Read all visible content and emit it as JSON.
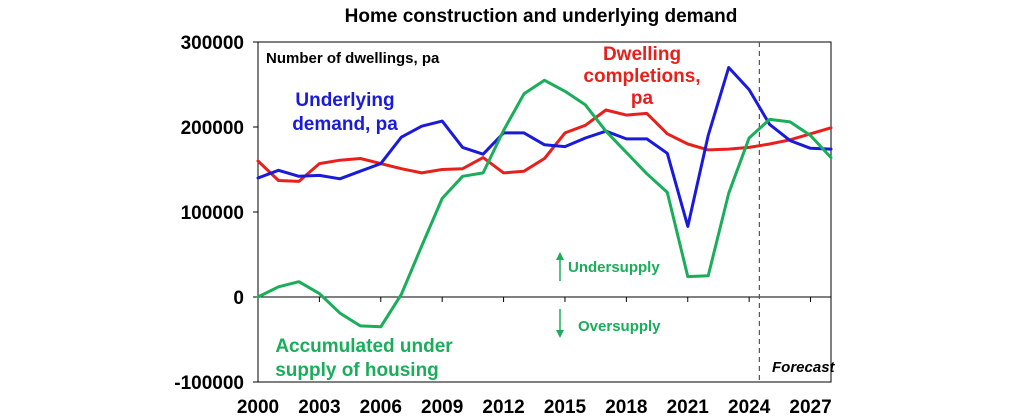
{
  "chart_data": {
    "type": "line",
    "title": "Home construction and underlying demand",
    "ylabel": "Number of dwellings, pa",
    "ylim": [
      -100000,
      300000
    ],
    "yticks": [
      300000,
      200000,
      100000,
      0,
      -100000
    ],
    "ytick_labels": [
      "300000",
      "200000",
      "100000",
      "0",
      "-100000"
    ],
    "xlim": [
      2000,
      2028
    ],
    "xticks": [
      2000,
      2003,
      2006,
      2009,
      2012,
      2015,
      2018,
      2021,
      2024,
      2027
    ],
    "xtick_labels": [
      "2000",
      "2003",
      "2006",
      "2009",
      "2012",
      "2015",
      "2018",
      "2021",
      "2024",
      "2027"
    ],
    "x": [
      2000,
      2001,
      2002,
      2003,
      2004,
      2005,
      2006,
      2007,
      2008,
      2009,
      2010,
      2011,
      2012,
      2013,
      2014,
      2015,
      2016,
      2017,
      2018,
      2019,
      2020,
      2021,
      2022,
      2023,
      2024,
      2025,
      2026,
      2027,
      2028
    ],
    "series": [
      {
        "name": "Underlying demand, pa",
        "label_lines": [
          "Underlying",
          "demand, pa"
        ],
        "color": "#1a1adb",
        "values": [
          140000,
          149000,
          142000,
          143000,
          139000,
          148000,
          157000,
          188000,
          201000,
          207000,
          176000,
          168000,
          193000,
          193000,
          179000,
          177000,
          187000,
          195000,
          186000,
          186000,
          169000,
          83000,
          190000,
          270000,
          244000,
          203000,
          184000,
          175000,
          174000
        ]
      },
      {
        "name": "Dwelling completions, pa",
        "label_lines": [
          "Dwelling",
          "completions,",
          "pa"
        ],
        "color": "#e8201c",
        "values": [
          160000,
          137000,
          136000,
          157000,
          161000,
          163000,
          157000,
          151000,
          146000,
          150000,
          151000,
          164000,
          146000,
          148000,
          163000,
          193000,
          202000,
          220000,
          214000,
          216000,
          192000,
          180000,
          173000,
          174000,
          176000,
          180000,
          185000,
          192000,
          199000
        ]
      },
      {
        "name": "Accumulated under supply of housing",
        "label_lines": [
          "Accumulated under",
          "supply of housing"
        ],
        "color": "#1aad5a",
        "values": [
          0,
          12000,
          18000,
          4000,
          -19000,
          -34000,
          -35000,
          3000,
          60000,
          116000,
          142000,
          146000,
          196000,
          239000,
          255000,
          242000,
          226000,
          195000,
          170000,
          145000,
          123000,
          24000,
          25000,
          122000,
          187000,
          209000,
          206000,
          190000,
          164000
        ]
      }
    ],
    "annotations": {
      "undersupply": "Undersupply",
      "oversupply": "Oversupply",
      "forecast": "Forecast",
      "forecast_start": 2024.5
    }
  }
}
